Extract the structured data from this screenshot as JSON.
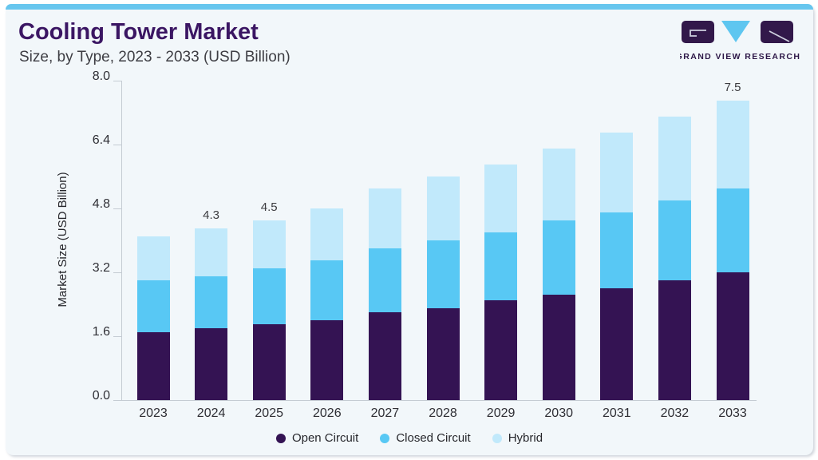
{
  "page": {
    "title": "Cooling Tower Market",
    "subtitle": "Size, by Type, 2023 - 2033 (USD Billion)"
  },
  "logo": {
    "brand": "GRAND VIEW RESEARCH"
  },
  "colors": {
    "accent_bar": "#67c6ee",
    "card_background": "#f2f7fa",
    "title_purple": "#3b1663",
    "axis_gray": "#c5ccd3",
    "open_circuit": "#341353",
    "closed_circuit": "#58c8f4",
    "hybrid": "#c1e9fb",
    "logo_purple": "#2d1747",
    "logo_triangle": "#5ec6f0"
  },
  "chart_data": {
    "type": "bar",
    "stacked": true,
    "title": "Cooling Tower Market",
    "subtitle": "Size, by Type, 2023 - 2033 (USD Billion)",
    "xlabel": "",
    "ylabel": "Market Size (USD Billion)",
    "ylim": [
      0,
      8
    ],
    "yticks": [
      "0.0",
      "1.6",
      "3.2",
      "4.8",
      "6.4",
      "8.0"
    ],
    "grid": false,
    "legend_position": "bottom",
    "categories": [
      "2023",
      "2024",
      "2025",
      "2026",
      "2027",
      "2028",
      "2029",
      "2030",
      "2031",
      "2032",
      "2033"
    ],
    "series": [
      {
        "name": "Open Circuit",
        "color": "#341353",
        "values": [
          1.7,
          1.8,
          1.9,
          2.0,
          2.2,
          2.3,
          2.5,
          2.65,
          2.8,
          3.0,
          3.2
        ]
      },
      {
        "name": "Closed Circuit",
        "color": "#58c8f4",
        "values": [
          1.3,
          1.3,
          1.4,
          1.5,
          1.6,
          1.7,
          1.7,
          1.85,
          1.9,
          2.0,
          2.1
        ]
      },
      {
        "name": "Hybrid",
        "color": "#c1e9fb",
        "values": [
          1.1,
          1.2,
          1.2,
          1.3,
          1.5,
          1.6,
          1.7,
          1.8,
          2.0,
          2.1,
          2.2
        ]
      }
    ],
    "totals": [
      4.1,
      4.3,
      4.5,
      4.8,
      5.3,
      5.6,
      5.9,
      6.3,
      6.7,
      7.1,
      7.5
    ],
    "totals_labeled": {
      "2024": "4.3",
      "2025": "4.5",
      "2033": "7.5"
    }
  }
}
